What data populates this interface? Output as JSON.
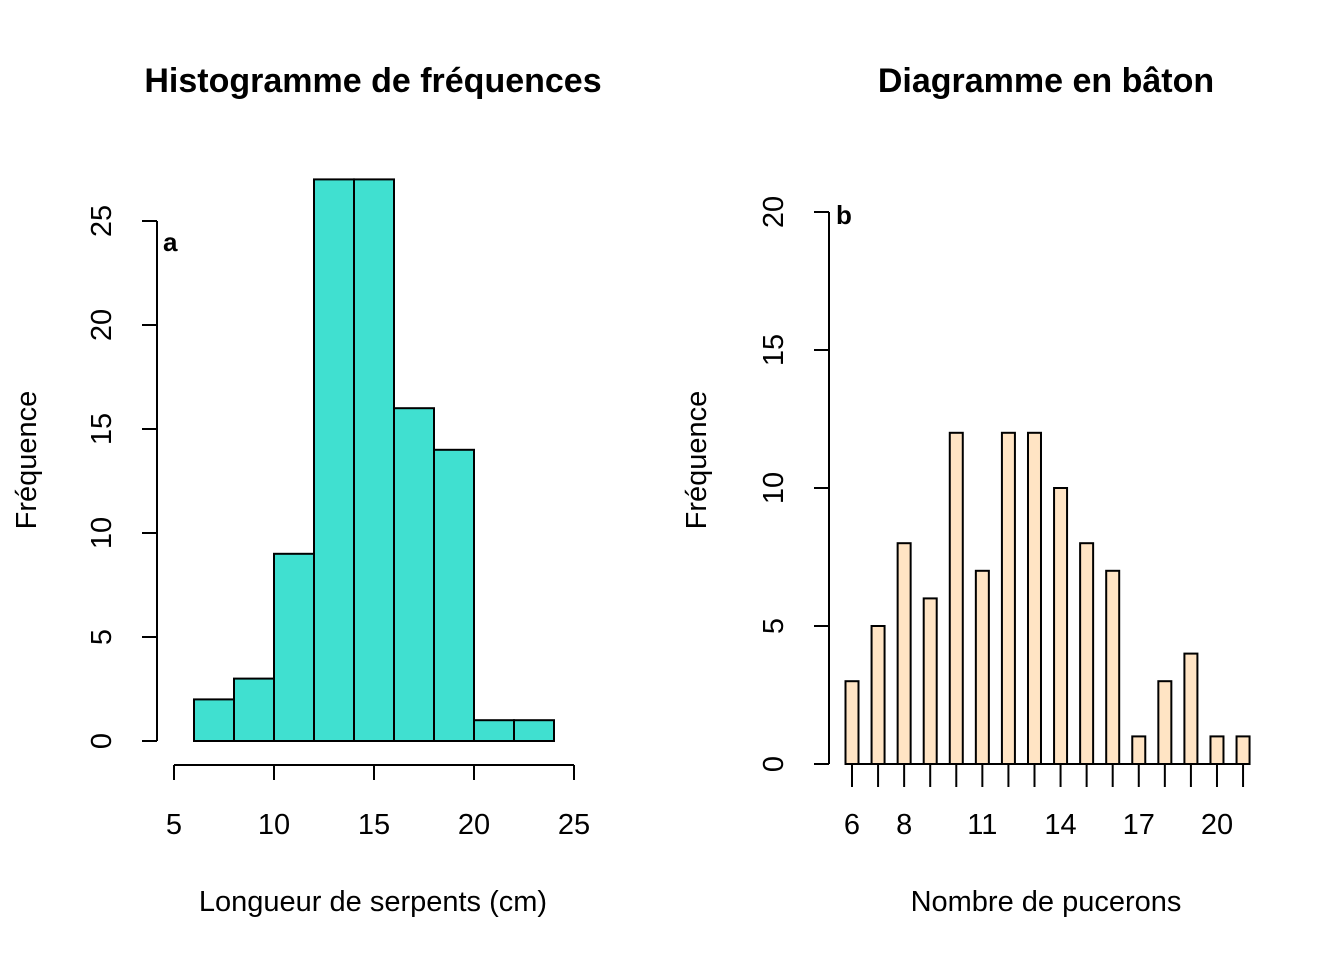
{
  "chart_data": [
    {
      "type": "bar",
      "title": "Histogramme de fréquences",
      "xlabel": "Longueur de serpents (cm)",
      "ylabel": "Fréquence",
      "panel_label": "a",
      "bin_edges": [
        6,
        8,
        10,
        12,
        14,
        16,
        18,
        20,
        22,
        24
      ],
      "values": [
        2,
        3,
        9,
        27,
        27,
        16,
        14,
        1,
        1
      ],
      "xlim": [
        5,
        25
      ],
      "ylim": [
        0,
        27
      ],
      "xticks": [
        5,
        10,
        15,
        20,
        25
      ],
      "yticks": [
        0,
        5,
        10,
        15,
        20,
        25
      ],
      "bar_color": "#40E0D0"
    },
    {
      "type": "bar",
      "title": "Diagramme en bâton",
      "xlabel": "Nombre de pucerons",
      "ylabel": "Fréquence",
      "panel_label": "b",
      "categories": [
        6,
        7,
        8,
        9,
        10,
        11,
        12,
        13,
        14,
        15,
        16,
        17,
        18,
        19,
        20,
        21
      ],
      "values": [
        3,
        5,
        8,
        6,
        12,
        7,
        12,
        12,
        10,
        8,
        7,
        1,
        3,
        4,
        1,
        1
      ],
      "xticklabels": [
        6,
        8,
        11,
        14,
        17,
        20
      ],
      "ylim": [
        0,
        20
      ],
      "yticks": [
        0,
        5,
        10,
        15,
        20
      ],
      "bar_color": "#FFE4C4"
    }
  ]
}
